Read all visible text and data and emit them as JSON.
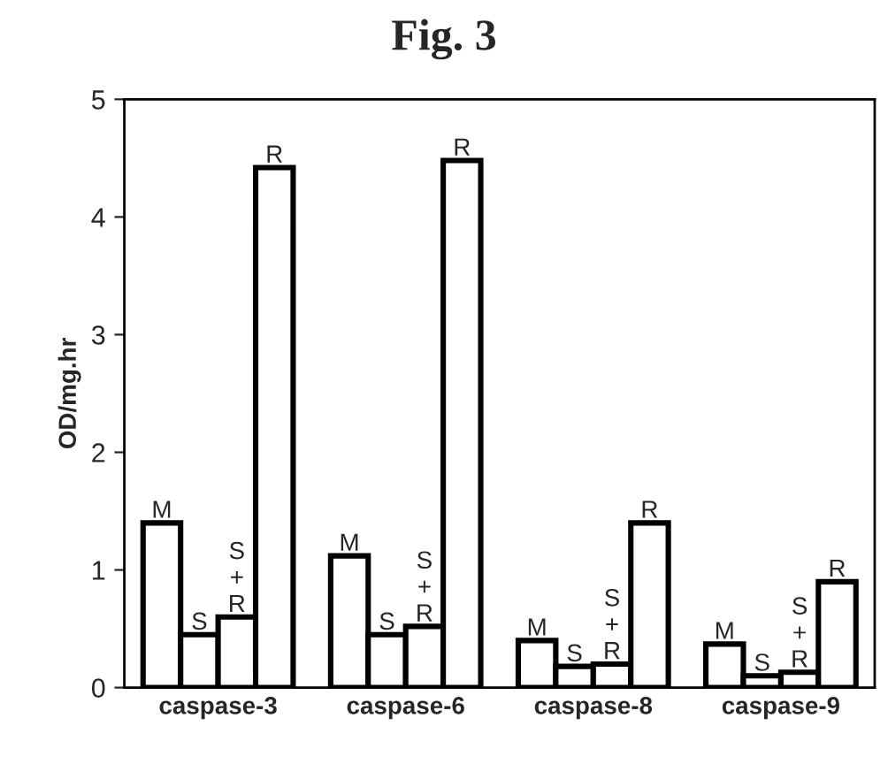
{
  "chart_data": {
    "type": "bar",
    "title": "Fig. 3",
    "ylabel": "OD/mg.hr",
    "categories": [
      "caspase-3",
      "caspase-6",
      "caspase-8",
      "caspase-9"
    ],
    "series": [
      {
        "name": "M",
        "color": "#ffffff",
        "values": [
          1.4,
          1.12,
          0.4,
          0.37
        ]
      },
      {
        "name": "S",
        "color": "#ffffff",
        "values": [
          0.45,
          0.45,
          0.18,
          0.1
        ]
      },
      {
        "name": "S+R",
        "color": "#ffffff",
        "values": [
          0.6,
          0.52,
          0.2,
          0.13
        ]
      },
      {
        "name": "R",
        "color": "#ffffff",
        "values": [
          4.42,
          4.48,
          1.4,
          0.9
        ]
      }
    ],
    "ylim": [
      0,
      5
    ],
    "yticks": [
      0,
      1,
      2,
      3,
      4,
      5
    ],
    "grid": false,
    "legend": false
  }
}
